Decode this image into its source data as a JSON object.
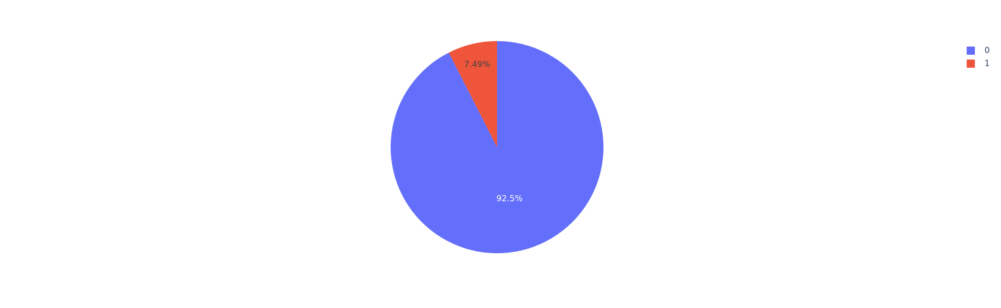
{
  "chart_data": {
    "type": "pie",
    "labels": [
      "0",
      "1"
    ],
    "values": [
      92.51,
      7.49
    ],
    "data_labels": [
      "92.5%",
      "7.49%"
    ],
    "colors": [
      "#636efa",
      "#ef553b"
    ],
    "label_text_colors": [
      "#ffffff",
      "#444444"
    ],
    "direction": "clockwise",
    "start_angle": "top",
    "legend": {
      "placement": "top-right",
      "entries": [
        "0",
        "1"
      ]
    }
  }
}
